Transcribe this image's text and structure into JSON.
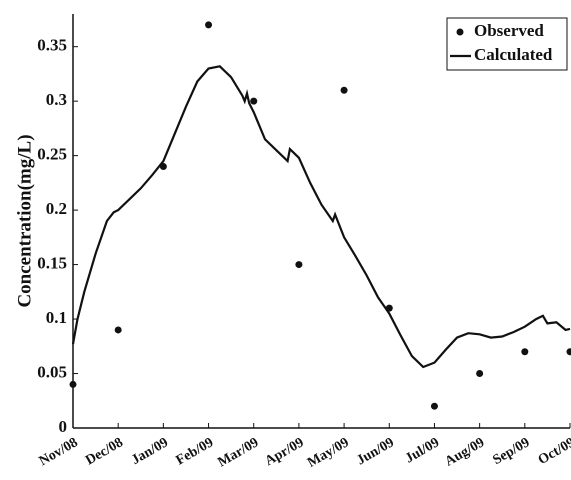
{
  "chart_data": {
    "type": "line",
    "y_label": "Concentration(mg/L)",
    "xlim": [
      0,
      11
    ],
    "xticks": [
      {
        "value": 0,
        "label": "Nov/08"
      },
      {
        "value": 1,
        "label": "Dec/08"
      },
      {
        "value": 2,
        "label": "Jan/09"
      },
      {
        "value": 3,
        "label": "Feb/09"
      },
      {
        "value": 4,
        "label": "Mar/09"
      },
      {
        "value": 5,
        "label": "Apr/09"
      },
      {
        "value": 6,
        "label": "May/09"
      },
      {
        "value": 7,
        "label": "Jun/09"
      },
      {
        "value": 8,
        "label": "Jul/09"
      },
      {
        "value": 9,
        "label": "Aug/09"
      },
      {
        "value": 10,
        "label": "Sep/09"
      },
      {
        "value": 11,
        "label": "Oct/09"
      }
    ],
    "ylim": [
      0,
      0.38
    ],
    "yticks": [
      0,
      0.05,
      0.1,
      0.15,
      0.2,
      0.25,
      0.3,
      0.35
    ],
    "legend": "upper right",
    "series": [
      {
        "name": "Observed",
        "color": "#111111",
        "kind": "scatter",
        "x": [
          0,
          1,
          2,
          3,
          4,
          5,
          6,
          7,
          8,
          9,
          10,
          11
        ],
        "values": [
          0.04,
          0.09,
          0.24,
          0.37,
          0.3,
          0.15,
          0.31,
          0.11,
          0.02,
          0.05,
          0.07,
          0.07
        ]
      },
      {
        "name": "Calculated",
        "color": "#111111",
        "kind": "line",
        "x": [
          0,
          0.1,
          0.25,
          0.5,
          0.75,
          0.9,
          1,
          1.25,
          1.5,
          1.75,
          2,
          2.25,
          2.5,
          2.75,
          3,
          3.25,
          3.5,
          3.75,
          3.8,
          3.85,
          3.9,
          4,
          4.25,
          4.5,
          4.75,
          4.8,
          5,
          5.25,
          5.5,
          5.75,
          5.8,
          6,
          6.25,
          6.5,
          6.75,
          7,
          7.25,
          7.5,
          7.75,
          8,
          8.25,
          8.5,
          8.75,
          9,
          9.25,
          9.5,
          9.75,
          10,
          10.25,
          10.4,
          10.5,
          10.7,
          10.9,
          11
        ],
        "values": [
          0.077,
          0.1,
          0.125,
          0.16,
          0.19,
          0.198,
          0.2,
          0.21,
          0.22,
          0.232,
          0.245,
          0.27,
          0.295,
          0.318,
          0.33,
          0.332,
          0.322,
          0.305,
          0.3,
          0.307,
          0.298,
          0.29,
          0.265,
          0.255,
          0.245,
          0.256,
          0.248,
          0.225,
          0.205,
          0.19,
          0.196,
          0.175,
          0.158,
          0.14,
          0.12,
          0.105,
          0.085,
          0.066,
          0.056,
          0.06,
          0.072,
          0.083,
          0.087,
          0.086,
          0.083,
          0.084,
          0.088,
          0.093,
          0.1,
          0.103,
          0.096,
          0.097,
          0.09,
          0.091
        ]
      }
    ]
  }
}
